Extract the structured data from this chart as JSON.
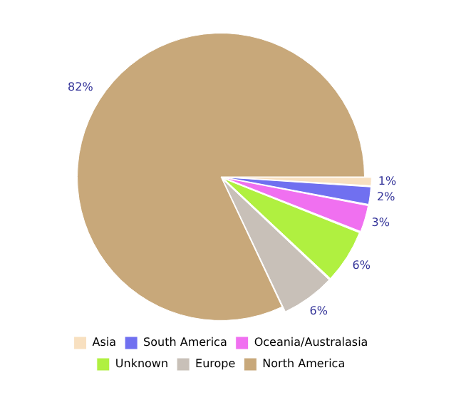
{
  "chart_data": {
    "type": "pie",
    "categories": [
      "North America",
      "Europe",
      "Unknown",
      "Oceania/Australasia",
      "South America",
      "Asia"
    ],
    "values": [
      82,
      6,
      6,
      3,
      2,
      1
    ],
    "colors": [
      "#c8a87a",
      "#c8c0b8",
      "#b0f040",
      "#f070f0",
      "#7070f0",
      "#f8e0c0"
    ],
    "value_labels": [
      "82%",
      "6%",
      "6%",
      "3%",
      "2%",
      "1%"
    ],
    "legend": "bottom"
  }
}
